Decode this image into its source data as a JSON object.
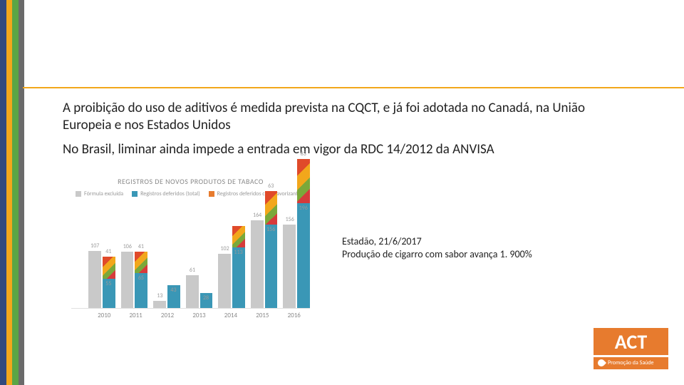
{
  "stripes": [
    "#314a7d",
    "#f2a71b",
    "#5aa545",
    "#6a6a6a"
  ],
  "hr_color": "#f2a71b",
  "paragraph1": "A proibição do uso de aditivos é medida prevista na CQCT, e já foi adotada no Canadá, na União Europeia e nos Estados Unidos",
  "paragraph2": "No Brasil, liminar ainda impede a entrada em vigor da RDC 14/2012 da ANVISA",
  "chart": {
    "title": "REGISTROS DE NOVOS PRODUTOS DE TABACO",
    "legend": [
      {
        "label": "Fórmula excluída",
        "color": "#c9c9c9"
      },
      {
        "label": "Registros deferidos (total)",
        "color": "#3a97b6"
      },
      {
        "label": "Registros deferidos com flavorizantes",
        "color": "#e77b2e"
      }
    ],
    "ymax": 200,
    "years": [
      "2010",
      "2011",
      "2012",
      "2013",
      "2014",
      "2015",
      "2016"
    ],
    "series_gray": [
      107,
      106,
      13,
      61,
      102,
      164,
      156
    ],
    "series_blue": [
      55,
      65,
      43,
      28,
      113,
      156,
      196
    ],
    "top_flavor": [
      41,
      41,
      0,
      0,
      41,
      63,
      83
    ],
    "label_gray": [
      "107",
      "106",
      "13",
      "61",
      "102",
      "164",
      "156"
    ],
    "label_blue": [
      "55",
      "65",
      "43",
      "28",
      "113",
      "156",
      "196"
    ],
    "label_top": [
      "41",
      "41",
      "",
      "",
      "",
      "63",
      "83"
    ]
  },
  "caption_line1": "Estadão, 21/6/2017",
  "caption_line2": "Produção de cigarro com sabor avança 1. 900%",
  "logo_main": "ACT",
  "logo_sub": "Promoção da Saúde"
}
